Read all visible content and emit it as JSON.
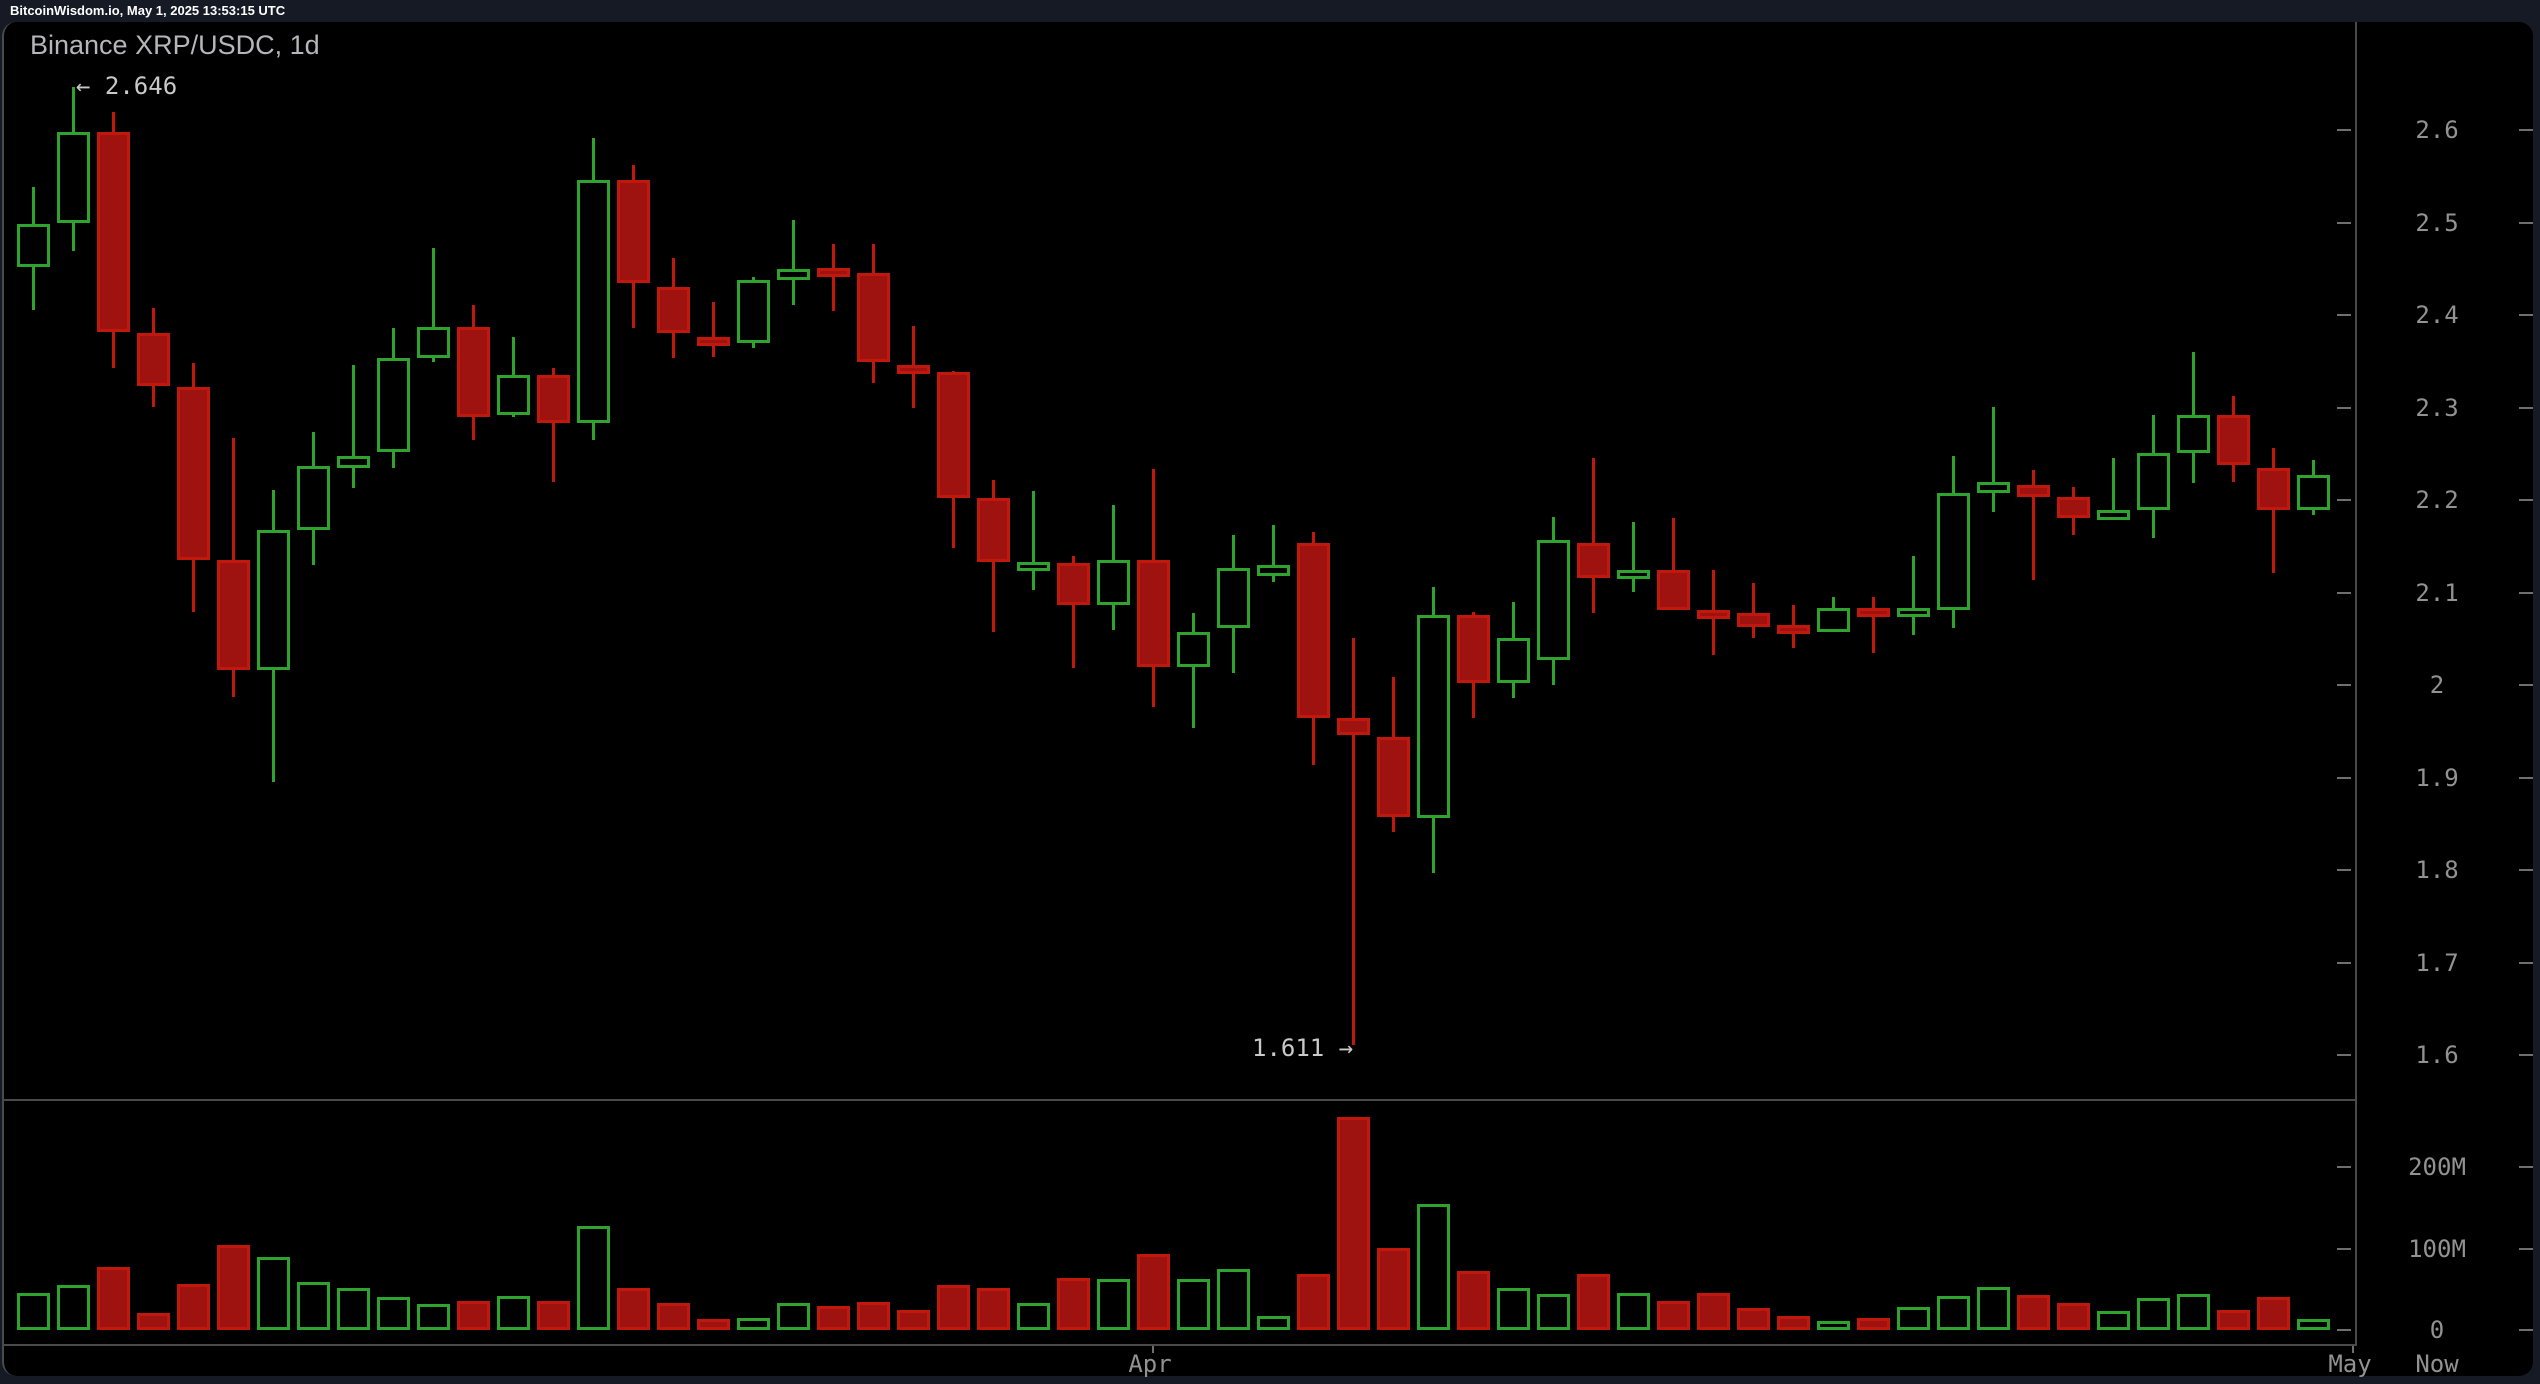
{
  "header": {
    "text": "BitcoinWisdom.io, May 1, 2025 13:53:15 UTC"
  },
  "chart": {
    "title": "Binance XRP/USDC, 1d",
    "high_annotation": "← 2.646",
    "low_annotation": "1.611 →",
    "colors": {
      "page_bg": "#151a24",
      "panel_bg": "#000000",
      "up": "#2ea32e",
      "down_fill": "#9e130f",
      "down_border": "#c1180e",
      "axis_line": "#4a4a4a",
      "tick": "#6f6f6f",
      "axis_label": "#929292",
      "title_text": "#b5b5ba",
      "annotation_text": "#c9c9c9",
      "topbar_text": "#ffffff"
    }
  },
  "chart_data": {
    "type": "candlestick-with-volume",
    "title": "Binance XRP/USDC, 1d",
    "exchange": "Binance",
    "pair": "XRP/USDC",
    "interval": "1d",
    "annotated_high": 2.646,
    "annotated_low": 1.611,
    "price_axis": {
      "labels": [
        "2.6",
        "2.5",
        "2.4",
        "2.3",
        "2.2",
        "2.1",
        "2",
        "1.9",
        "1.8",
        "1.7",
        "1.6"
      ],
      "values": [
        2.6,
        2.5,
        2.4,
        2.3,
        2.2,
        2.1,
        2.0,
        1.9,
        1.8,
        1.7,
        1.6
      ],
      "min": 1.6,
      "max": 2.6
    },
    "volume_axis": {
      "labels": [
        "200M",
        "100M",
        "0"
      ],
      "values_millions": [
        200,
        100,
        0
      ]
    },
    "x_axis": {
      "labels": [
        "Apr",
        "May",
        "Now"
      ]
    },
    "candles_format": [
      "open",
      "high",
      "low",
      "close",
      "volume_millions"
    ],
    "candles": [
      [
        2.452,
        2.538,
        2.405,
        2.498,
        46
      ],
      [
        2.499,
        2.646,
        2.469,
        2.598,
        55
      ],
      [
        2.598,
        2.619,
        2.343,
        2.382,
        77
      ],
      [
        2.381,
        2.408,
        2.3,
        2.323,
        21
      ],
      [
        2.322,
        2.348,
        2.079,
        2.135,
        57
      ],
      [
        2.135,
        2.267,
        1.987,
        2.016,
        104
      ],
      [
        2.016,
        2.211,
        1.895,
        2.168,
        90
      ],
      [
        2.168,
        2.273,
        2.13,
        2.237,
        59
      ],
      [
        2.235,
        2.346,
        2.213,
        2.248,
        52
      ],
      [
        2.252,
        2.386,
        2.235,
        2.354,
        40
      ],
      [
        2.354,
        2.472,
        2.349,
        2.387,
        32
      ],
      [
        2.387,
        2.411,
        2.265,
        2.29,
        35
      ],
      [
        2.292,
        2.376,
        2.29,
        2.335,
        42
      ],
      [
        2.335,
        2.343,
        2.219,
        2.283,
        36
      ],
      [
        2.283,
        2.591,
        2.265,
        2.546,
        128
      ],
      [
        2.546,
        2.562,
        2.386,
        2.435,
        52
      ],
      [
        2.43,
        2.462,
        2.354,
        2.381,
        33
      ],
      [
        2.376,
        2.414,
        2.355,
        2.37,
        13
      ],
      [
        2.37,
        2.441,
        2.364,
        2.438,
        15
      ],
      [
        2.438,
        2.503,
        2.411,
        2.45,
        33
      ],
      [
        2.451,
        2.477,
        2.404,
        2.443,
        29
      ],
      [
        2.445,
        2.477,
        2.326,
        2.349,
        34
      ],
      [
        2.346,
        2.388,
        2.299,
        2.339,
        24
      ],
      [
        2.338,
        2.34,
        2.148,
        2.202,
        55
      ],
      [
        2.202,
        2.222,
        2.057,
        2.133,
        51
      ],
      [
        2.13,
        2.21,
        2.103,
        2.133,
        33
      ],
      [
        2.132,
        2.139,
        2.018,
        2.086,
        64
      ],
      [
        2.086,
        2.195,
        2.059,
        2.135,
        62
      ],
      [
        2.135,
        2.234,
        1.976,
        2.019,
        93
      ],
      [
        2.019,
        2.078,
        1.953,
        2.057,
        63
      ],
      [
        2.062,
        2.162,
        2.013,
        2.127,
        75
      ],
      [
        2.118,
        2.173,
        2.111,
        2.13,
        17
      ],
      [
        2.153,
        2.165,
        1.914,
        1.964,
        69
      ],
      [
        1.964,
        2.051,
        1.611,
        1.946,
        261
      ],
      [
        1.944,
        2.009,
        1.841,
        1.857,
        101
      ],
      [
        1.856,
        2.106,
        1.797,
        2.076,
        154
      ],
      [
        2.076,
        2.079,
        1.964,
        2.002,
        73
      ],
      [
        2.002,
        2.09,
        1.986,
        2.051,
        52
      ],
      [
        2.027,
        2.182,
        2.0,
        2.157,
        44
      ],
      [
        2.154,
        2.245,
        2.078,
        2.116,
        69
      ],
      [
        2.117,
        2.176,
        2.101,
        2.124,
        45
      ],
      [
        2.124,
        2.181,
        2.081,
        2.081,
        36
      ],
      [
        2.081,
        2.124,
        2.032,
        2.076,
        46
      ],
      [
        2.078,
        2.11,
        2.051,
        2.063,
        27
      ],
      [
        2.065,
        2.086,
        2.04,
        2.057,
        17
      ],
      [
        2.057,
        2.095,
        2.057,
        2.083,
        11
      ],
      [
        2.083,
        2.095,
        2.035,
        2.078,
        15
      ],
      [
        2.078,
        2.139,
        2.054,
        2.083,
        28
      ],
      [
        2.081,
        2.248,
        2.062,
        2.208,
        42
      ],
      [
        2.208,
        2.301,
        2.187,
        2.219,
        53
      ],
      [
        2.216,
        2.232,
        2.113,
        2.203,
        43
      ],
      [
        2.203,
        2.214,
        2.162,
        2.181,
        33
      ],
      [
        2.178,
        2.245,
        2.178,
        2.189,
        23
      ],
      [
        2.189,
        2.292,
        2.159,
        2.251,
        39
      ],
      [
        2.251,
        2.36,
        2.218,
        2.292,
        44
      ],
      [
        2.292,
        2.312,
        2.219,
        2.238,
        25
      ],
      [
        2.235,
        2.256,
        2.121,
        2.189,
        40
      ],
      [
        2.189,
        2.243,
        2.184,
        2.227,
        14
      ]
    ]
  }
}
